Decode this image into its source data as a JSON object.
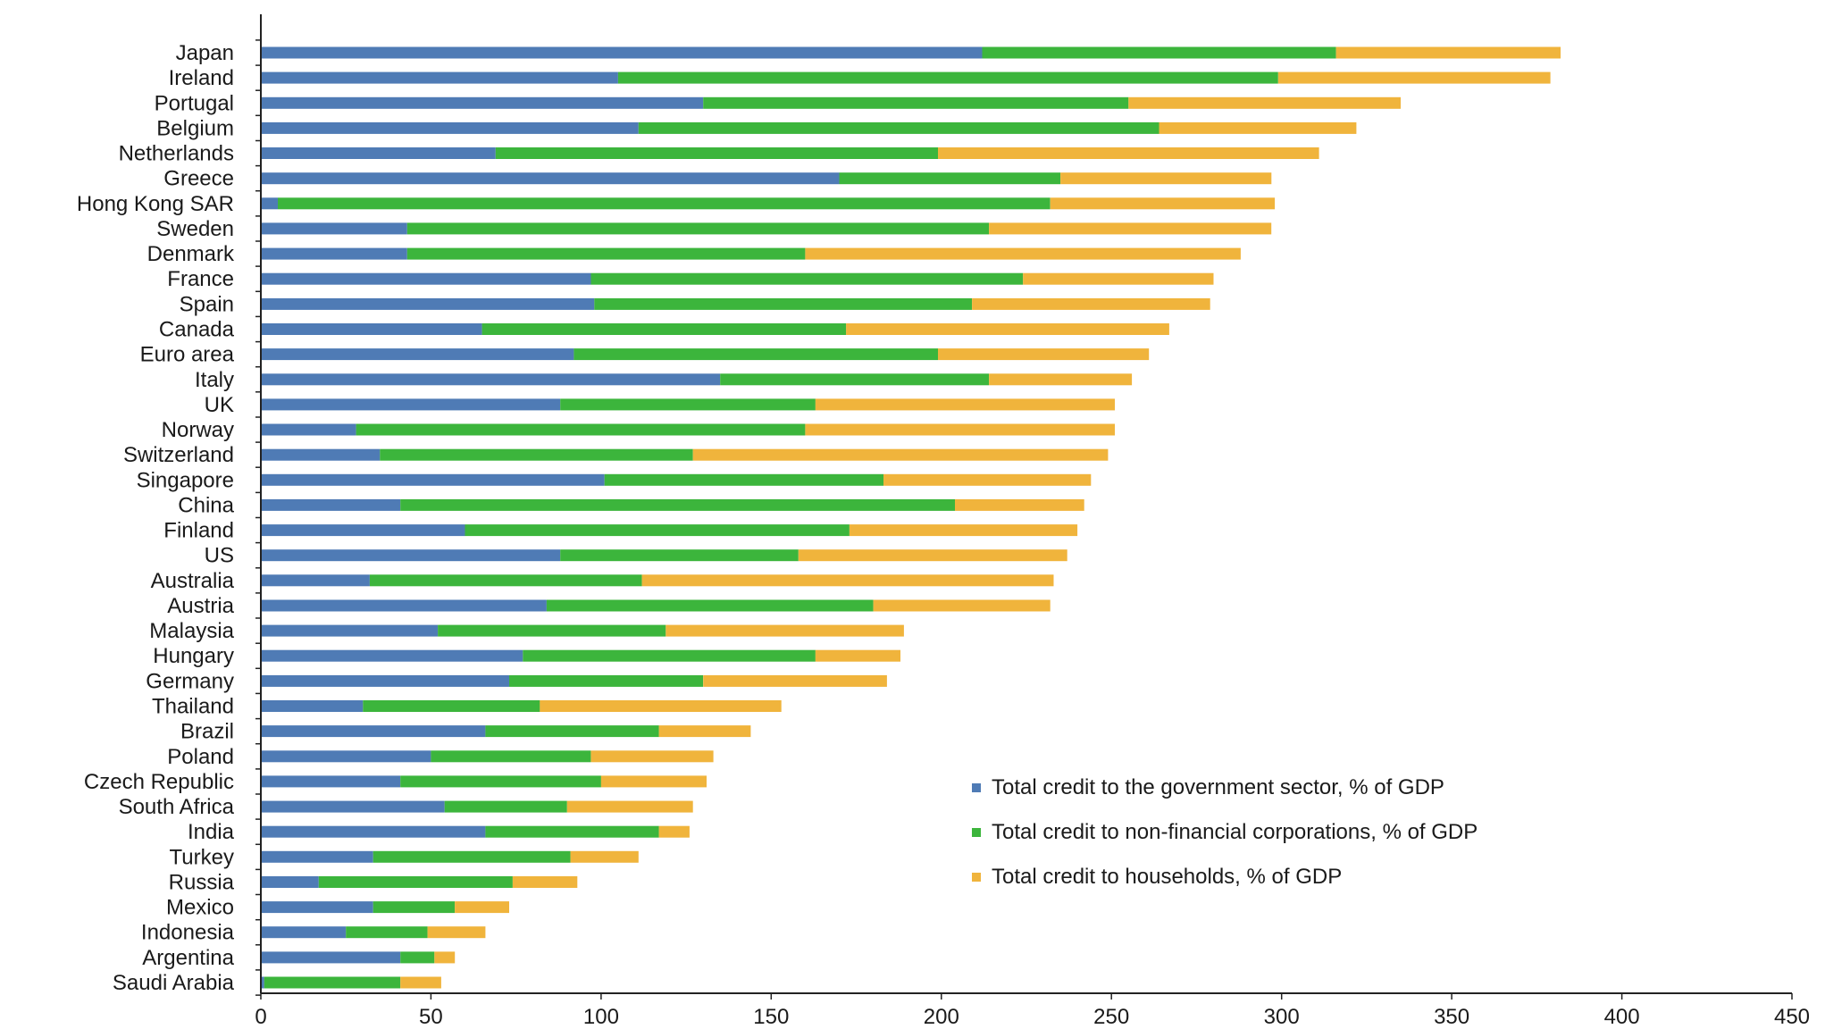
{
  "chart_data": {
    "type": "bar",
    "orientation": "horizontal",
    "stacked": true,
    "categories": [
      "Japan",
      "Ireland",
      "Portugal",
      "Belgium",
      "Netherlands",
      "Greece",
      "Hong Kong SAR",
      "Sweden",
      "Denmark",
      "France",
      "Spain",
      "Canada",
      "Euro area",
      "Italy",
      "UK",
      "Norway",
      "Switzerland",
      "Singapore",
      "China",
      "Finland",
      "US",
      "Australia",
      "Austria",
      "Malaysia",
      "Hungary",
      "Germany",
      "Thailand",
      "Brazil",
      "Poland",
      "Czech Republic",
      "South Africa",
      "India",
      "Turkey",
      "Russia",
      "Mexico",
      "Indonesia",
      "Argentina",
      "Saudi Arabia"
    ],
    "series": [
      {
        "name": "Total credit to the government sector, % of GDP",
        "color": "#4f7bb5",
        "values": [
          212,
          105,
          130,
          111,
          69,
          170,
          5,
          43,
          43,
          97,
          98,
          65,
          92,
          135,
          88,
          28,
          35,
          101,
          41,
          60,
          88,
          32,
          84,
          52,
          77,
          73,
          30,
          66,
          50,
          41,
          54,
          66,
          33,
          17,
          33,
          25,
          41,
          1
        ]
      },
      {
        "name": "Total credit to non-financial corporations, % of GDP",
        "color": "#3cb53c",
        "values": [
          104,
          194,
          125,
          153,
          130,
          65,
          227,
          171,
          117,
          127,
          111,
          107,
          107,
          79,
          75,
          132,
          92,
          82,
          163,
          113,
          70,
          80,
          96,
          67,
          86,
          57,
          52,
          51,
          47,
          59,
          36,
          51,
          58,
          57,
          24,
          24,
          10,
          40
        ]
      },
      {
        "name": "Total credit to households, % of GDP",
        "color": "#f0b43c",
        "values": [
          66,
          80,
          80,
          58,
          112,
          62,
          66,
          83,
          128,
          56,
          70,
          95,
          62,
          42,
          88,
          91,
          122,
          61,
          38,
          67,
          79,
          121,
          52,
          70,
          25,
          54,
          71,
          27,
          36,
          31,
          37,
          9,
          20,
          19,
          16,
          17,
          6,
          12
        ]
      }
    ],
    "xlim": [
      0,
      450
    ],
    "xticks": [
      "0",
      "50",
      "100",
      "150",
      "200",
      "250",
      "300",
      "350",
      "400",
      "450"
    ],
    "legend_position": "lower-right",
    "grid": false,
    "title": "",
    "xlabel": "",
    "ylabel": ""
  }
}
